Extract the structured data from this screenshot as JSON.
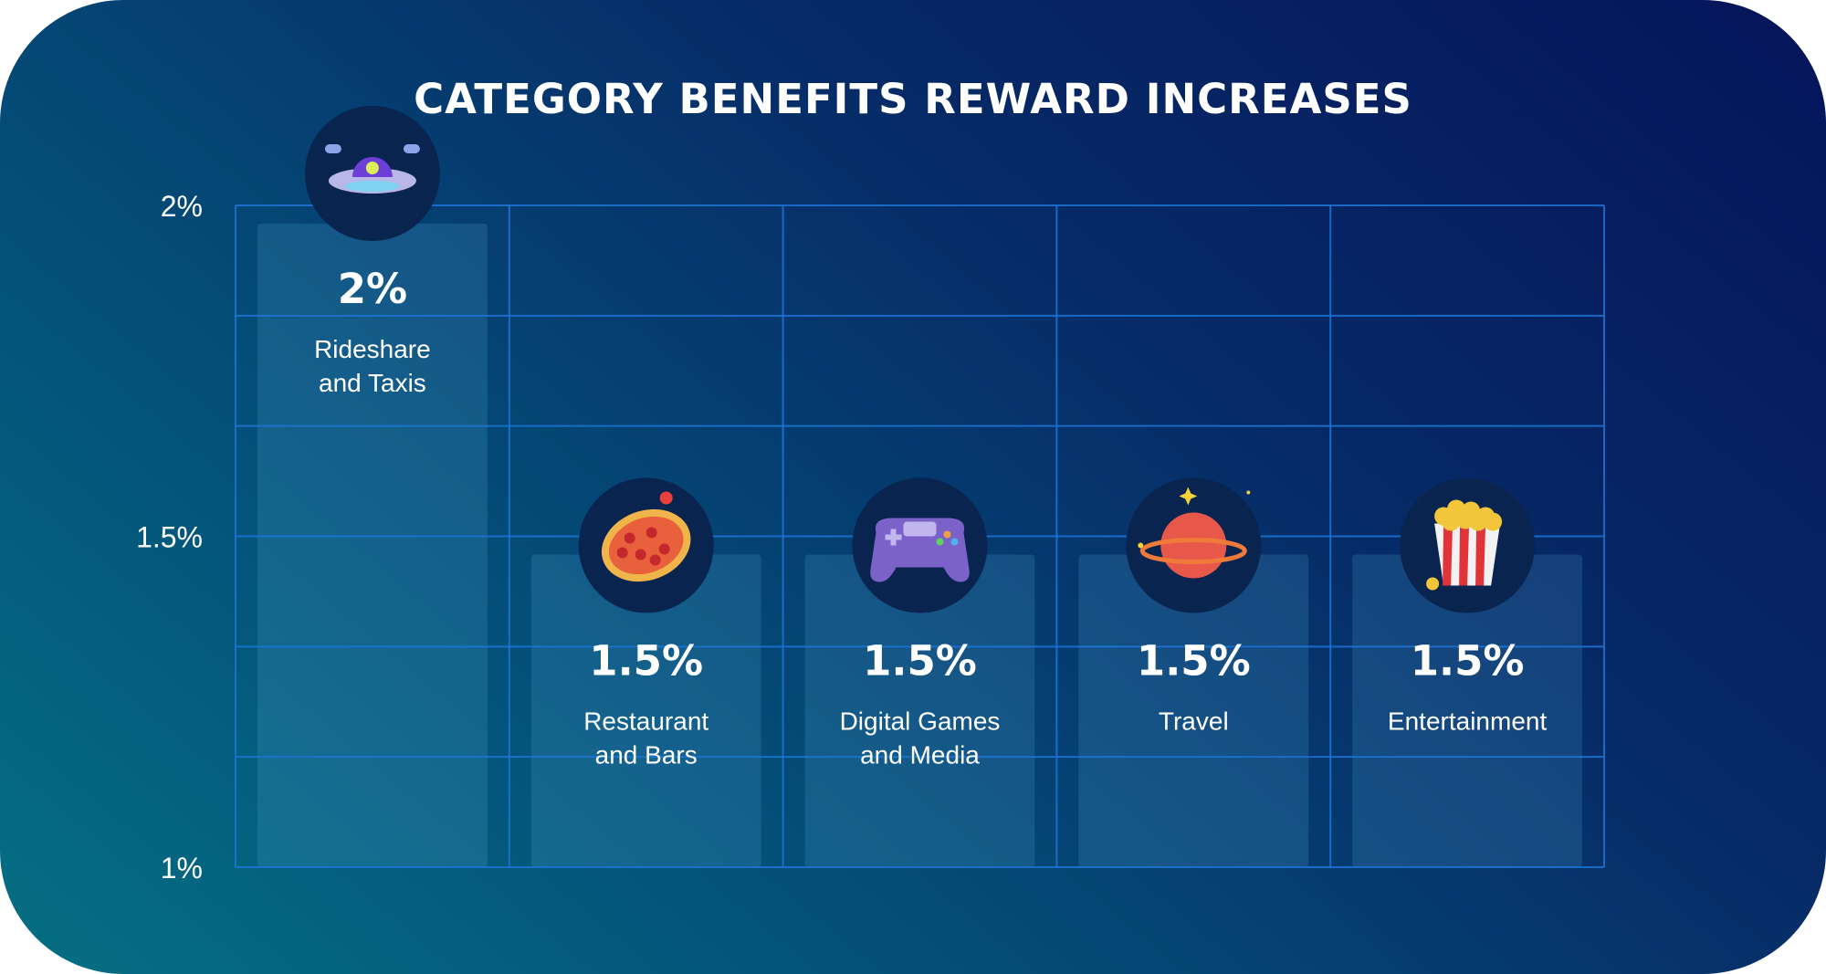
{
  "chart_data": {
    "type": "bar",
    "title": "CATEGORY BENEFITS REWARD INCREASES",
    "xlabel": "",
    "ylabel": "",
    "ylim": [
      1,
      2
    ],
    "y_ticks": [
      {
        "value": 2,
        "label": "2%"
      },
      {
        "value": 1.5,
        "label": "1.5%"
      },
      {
        "value": 1,
        "label": "1%"
      }
    ],
    "categories": [
      [
        "Rideshare",
        "and Taxis"
      ],
      [
        "Restaurant",
        "and Bars"
      ],
      [
        "Digital Games",
        "and Media"
      ],
      [
        "Travel"
      ],
      [
        "Entertainment"
      ]
    ],
    "values": [
      2,
      1.5,
      1.5,
      1.5,
      1.5
    ],
    "value_labels": [
      "2%",
      "1.5%",
      "1.5%",
      "1.5%",
      "1.5%"
    ],
    "icons": [
      "ufo-icon",
      "pizza-icon",
      "game-controller-icon",
      "planet-icon",
      "popcorn-icon"
    ],
    "grid": true,
    "legend": "none"
  },
  "colors": {
    "background_start": "#05145a",
    "background_end": "#057083",
    "grid_line": "#1d74d6",
    "bar_fill": "#5fb6e6",
    "icon_circle": "#08244f",
    "text": "#ffffff"
  }
}
